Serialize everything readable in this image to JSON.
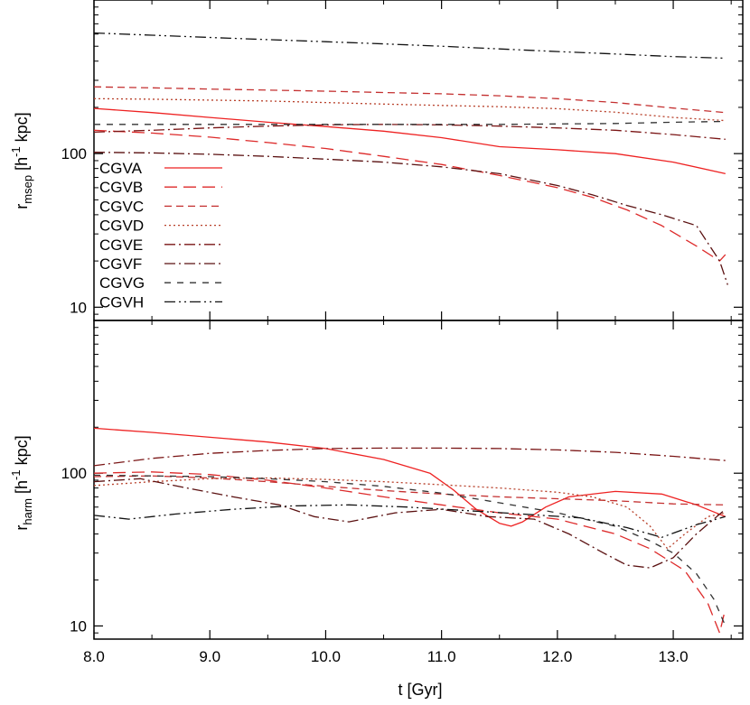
{
  "colors": {
    "CGVA": "#ee2222",
    "CGVB": "#dd2a2a",
    "CGVC": "#c43030",
    "CGVD": "#b8402a",
    "CGVE": "#7a1515",
    "CGVF": "#5a1010",
    "CGVG": "#333333",
    "CGVH": "#111111"
  },
  "chart_data": [
    {
      "type": "line",
      "panel": "top",
      "ylabel": "r",
      "ylabel_sub": "msep",
      "ylabel_unit_pre": " [h",
      "ylabel_sup": "-1",
      "ylabel_unit_post": " kpc]",
      "xlim": [
        8.0,
        13.6
      ],
      "ylim": [
        8.2,
        1000
      ],
      "yscale": "log",
      "x_ticks": [
        "8.0",
        "9.0",
        "10.0",
        "11.0",
        "12.0",
        "13.0"
      ],
      "y_ticks": [
        "10",
        "100"
      ],
      "legend": {
        "placement": "left-middle",
        "entries": [
          "CGVA",
          "CGVB",
          "CGVC",
          "CGVD",
          "CGVE",
          "CGVF",
          "CGVG",
          "CGVH"
        ]
      },
      "series": [
        {
          "name": "CGVA",
          "dash": "solid",
          "x": [
            8.0,
            8.5,
            9.0,
            9.5,
            10.0,
            10.5,
            11.0,
            11.5,
            12.0,
            12.5,
            13.0,
            13.45
          ],
          "y": [
            197,
            185,
            172,
            160,
            150,
            140,
            127,
            111,
            106,
            100,
            88,
            74
          ]
        },
        {
          "name": "CGVB",
          "dash": "long",
          "x": [
            8.0,
            8.5,
            9.0,
            9.5,
            10.0,
            10.5,
            11.0,
            11.5,
            12.0,
            12.3,
            12.6,
            12.9,
            13.2,
            13.4,
            13.45
          ],
          "y": [
            142,
            136,
            128,
            118,
            108,
            96,
            85,
            72,
            60,
            52,
            43,
            34,
            25,
            20,
            22
          ]
        },
        {
          "name": "CGVC",
          "dash": "medium",
          "x": [
            8.0,
            8.5,
            9.0,
            9.5,
            10.0,
            10.5,
            11.0,
            11.5,
            12.0,
            12.5,
            13.0,
            13.45
          ],
          "y": [
            272,
            268,
            263,
            259,
            255,
            250,
            245,
            238,
            228,
            215,
            198,
            185
          ]
        },
        {
          "name": "CGVD",
          "dash": "dot",
          "x": [
            8.0,
            8.5,
            9.0,
            9.5,
            10.0,
            10.5,
            11.0,
            11.5,
            12.0,
            12.5,
            13.0,
            13.45
          ],
          "y": [
            228,
            226,
            223,
            220,
            215,
            210,
            206,
            202,
            196,
            186,
            172,
            164
          ]
        },
        {
          "name": "CGVE",
          "dash": "dashdot",
          "x": [
            8.0,
            8.5,
            9.0,
            9.5,
            10.0,
            10.5,
            11.0,
            11.5,
            12.0,
            12.5,
            13.0,
            13.45
          ],
          "y": [
            138,
            142,
            147,
            151,
            154,
            155,
            154,
            151,
            147,
            142,
            133,
            124
          ]
        },
        {
          "name": "CGVF",
          "dash": "dashdot",
          "x": [
            8.0,
            8.5,
            9.0,
            9.5,
            10.0,
            10.5,
            11.0,
            11.5,
            12.0,
            12.3,
            12.6,
            12.9,
            13.2,
            13.4,
            13.47
          ],
          "y": [
            102,
            101,
            99,
            96,
            92,
            88,
            82,
            74,
            62,
            54,
            46,
            40,
            34,
            20,
            14
          ]
        },
        {
          "name": "CGVG",
          "dash": "dashed",
          "x": [
            8.0,
            8.5,
            9.0,
            9.5,
            10.0,
            10.5,
            11.0,
            11.5,
            12.0,
            12.5,
            13.0,
            13.45
          ],
          "y": [
            155,
            155,
            155,
            155,
            155,
            155,
            155,
            155,
            156,
            157,
            160,
            162
          ]
        },
        {
          "name": "CGVH",
          "dash": "dashdotdot",
          "x": [
            8.0,
            8.5,
            9.0,
            9.5,
            10.0,
            10.5,
            11.0,
            11.5,
            12.0,
            12.5,
            13.0,
            13.45
          ],
          "y": [
            610,
            590,
            570,
            552,
            535,
            518,
            500,
            480,
            462,
            445,
            428,
            418
          ]
        }
      ]
    },
    {
      "type": "line",
      "panel": "bottom",
      "xlabel": "t [Gyr]",
      "ylabel": "r",
      "ylabel_sub": "harm",
      "ylabel_unit_pre": " [h",
      "ylabel_sup": "-1",
      "ylabel_unit_post": " kpc]",
      "xlim": [
        8.0,
        13.6
      ],
      "ylim": [
        8.2,
        1000
      ],
      "yscale": "log",
      "x_ticks": [
        "8.0",
        "9.0",
        "10.0",
        "11.0",
        "12.0",
        "13.0"
      ],
      "y_ticks": [
        "10",
        "100"
      ],
      "series": [
        {
          "name": "CGVA",
          "dash": "solid",
          "x": [
            8.0,
            8.5,
            9.0,
            9.5,
            10.0,
            10.5,
            10.9,
            11.1,
            11.3,
            11.5,
            11.6,
            11.7,
            11.9,
            12.1,
            12.5,
            12.9,
            13.2,
            13.45
          ],
          "y": [
            197,
            185,
            172,
            160,
            145,
            123,
            100,
            78,
            58,
            47,
            45,
            48,
            60,
            70,
            76,
            73,
            62,
            52
          ]
        },
        {
          "name": "CGVB",
          "dash": "long",
          "x": [
            8.0,
            8.5,
            9.0,
            9.5,
            10.0,
            10.5,
            11.0,
            11.5,
            12.0,
            12.5,
            12.8,
            13.1,
            13.3,
            13.4,
            13.45
          ],
          "y": [
            100,
            102,
            98,
            90,
            80,
            70,
            62,
            55,
            50,
            40,
            32,
            23,
            14,
            9,
            13
          ]
        },
        {
          "name": "CGVC",
          "dash": "medium",
          "x": [
            8.0,
            8.5,
            9.0,
            9.5,
            10.0,
            10.5,
            11.0,
            11.5,
            12.0,
            12.5,
            13.0,
            13.45
          ],
          "y": [
            95,
            96,
            93,
            88,
            82,
            77,
            73,
            70,
            68,
            66,
            63,
            62
          ]
        },
        {
          "name": "CGVD",
          "dash": "dot",
          "x": [
            8.0,
            8.5,
            9.0,
            9.5,
            10.0,
            10.5,
            11.0,
            11.5,
            12.0,
            12.3,
            12.6,
            12.8,
            12.95,
            13.1,
            13.3,
            13.45
          ],
          "y": [
            83,
            88,
            92,
            93,
            91,
            88,
            84,
            80,
            75,
            70,
            60,
            45,
            32,
            40,
            52,
            55
          ]
        },
        {
          "name": "CGVE",
          "dash": "dashdot",
          "x": [
            8.0,
            8.5,
            9.0,
            9.5,
            10.0,
            10.5,
            11.0,
            11.5,
            12.0,
            12.5,
            13.0,
            13.45
          ],
          "y": [
            112,
            125,
            135,
            141,
            145,
            146,
            146,
            145,
            142,
            137,
            129,
            121
          ]
        },
        {
          "name": "CGVF",
          "dash": "dashdot",
          "x": [
            8.0,
            8.4,
            8.8,
            9.2,
            9.6,
            9.9,
            10.2,
            10.6,
            11.0,
            11.4,
            11.8,
            12.1,
            12.4,
            12.6,
            12.8,
            13.0,
            13.2,
            13.45
          ],
          "y": [
            88,
            92,
            80,
            70,
            62,
            52,
            48,
            55,
            58,
            52,
            50,
            40,
            30,
            25,
            24,
            28,
            40,
            58
          ]
        },
        {
          "name": "CGVG",
          "dash": "dashed",
          "x": [
            8.0,
            8.5,
            9.0,
            9.5,
            10.0,
            10.5,
            11.0,
            11.5,
            12.0,
            12.5,
            12.8,
            13.0,
            13.2,
            13.35,
            13.45
          ],
          "y": [
            97,
            96,
            95,
            92,
            88,
            82,
            74,
            64,
            55,
            45,
            36,
            30,
            22,
            15,
            10
          ]
        },
        {
          "name": "CGVH",
          "dash": "dashdotdot",
          "x": [
            8.0,
            8.3,
            8.7,
            9.2,
            9.7,
            10.2,
            10.7,
            11.2,
            11.7,
            12.2,
            12.6,
            12.9,
            13.2,
            13.45
          ],
          "y": [
            53,
            50,
            54,
            58,
            61,
            62,
            60,
            57,
            54,
            51,
            44,
            38,
            46,
            52
          ]
        }
      ]
    }
  ]
}
